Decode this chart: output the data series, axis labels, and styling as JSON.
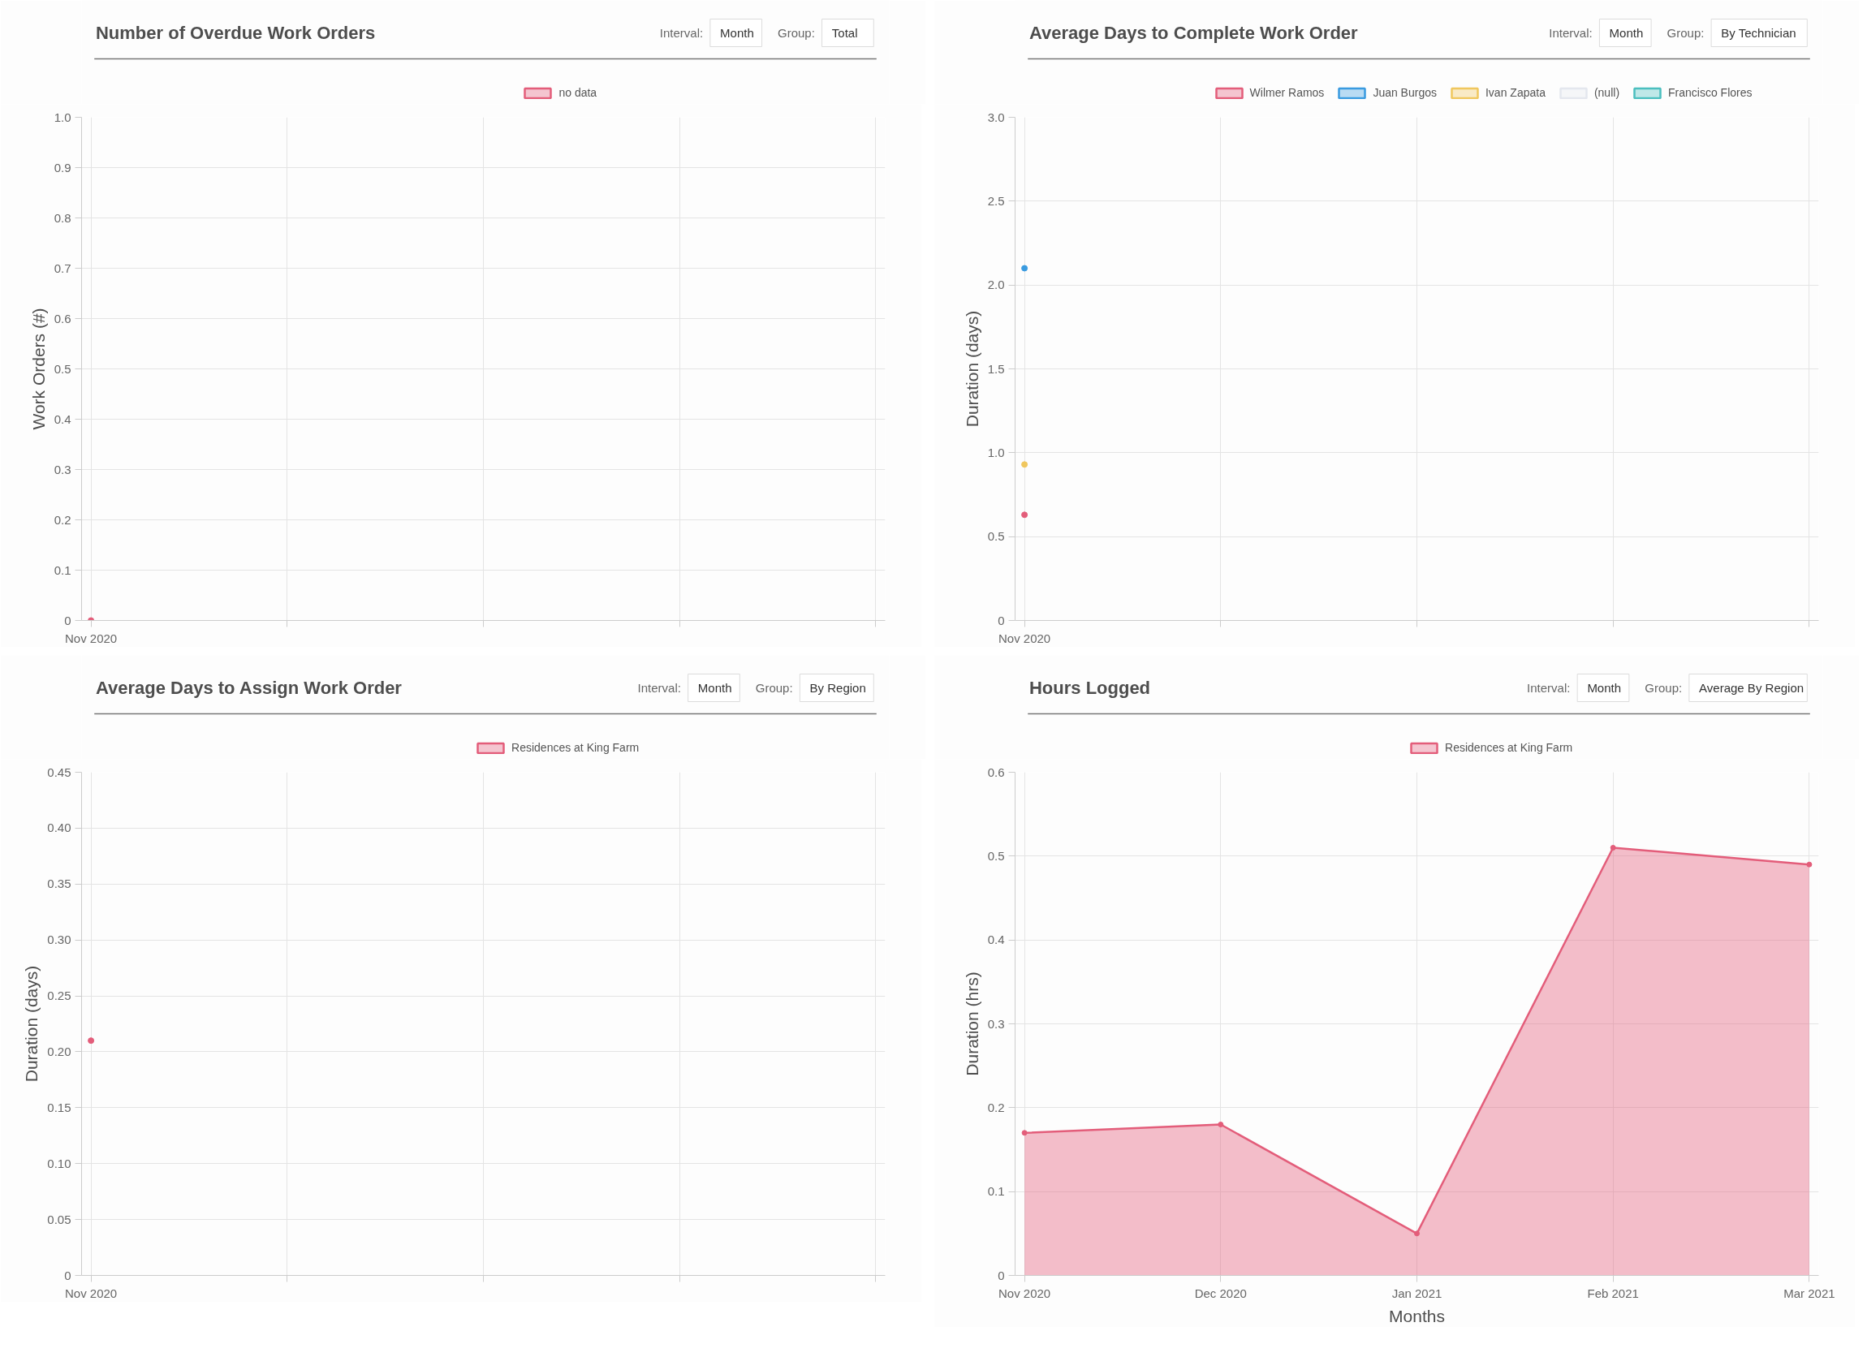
{
  "chart_data": [
    {
      "type": "area",
      "title": "Number of Overdue Work Orders",
      "annotations": [
        "Interval:",
        "Month",
        "Group:",
        "Total"
      ],
      "ylabel": "Work Orders (#)",
      "categories": [
        "Nov 2020",
        null,
        null,
        null,
        null
      ],
      "series": [
        {
          "name": "no data",
          "type": "scatter",
          "color": "#e35d7a",
          "values": [
            0,
            null,
            null,
            null,
            null
          ]
        }
      ],
      "ylim": [
        0,
        1
      ],
      "yticks": [
        0,
        0.1,
        0.2,
        0.3,
        0.4,
        0.5,
        0.6,
        0.7,
        0.8,
        0.9,
        {
          "value": 1,
          "label": "1.0"
        }
      ],
      "grid": true,
      "legend": "top",
      "marker": "circle"
    },
    {
      "type": "area",
      "title": "Average Days to Complete Work Order",
      "annotations": [
        "Interval:",
        "Month",
        "Group:",
        "By Technician"
      ],
      "ylabel": "Duration (days)",
      "categories": [
        "Nov 2020",
        null,
        null,
        null,
        null
      ],
      "series": [
        {
          "name": "Wilmer Ramos",
          "type": "scatter",
          "color": "#e35d7a",
          "values": [
            0.63,
            null,
            null,
            null,
            null
          ]
        },
        {
          "name": "Juan Burgos",
          "type": "scatter",
          "color": "#3a9be0",
          "values": [
            2.1,
            null,
            null,
            null,
            null
          ]
        },
        {
          "name": "Ivan Zapata",
          "type": "scatter",
          "color": "#f0c75e",
          "values": [
            0.93,
            null,
            null,
            null,
            null
          ]
        },
        {
          "name": "(null)",
          "color": "#e4e7ee",
          "values": [
            null,
            null,
            null,
            null,
            null
          ]
        },
        {
          "name": "Francisco Flores",
          "color": "#4bbfbf",
          "values": [
            null,
            null,
            null,
            null,
            null
          ]
        }
      ],
      "ylim": [
        0,
        3
      ],
      "yticks": [
        0,
        0.5,
        {
          "value": 1,
          "label": "1.0"
        },
        1.5,
        {
          "value": 2,
          "label": "2.0"
        },
        2.5,
        {
          "value": 3,
          "label": "3.0"
        }
      ],
      "grid": true,
      "legend": "top",
      "marker": "circle"
    },
    {
      "type": "area",
      "title": "Average Days to Assign Work Order",
      "annotations": [
        "Interval:",
        "Month",
        "Group:",
        "By Region"
      ],
      "ylabel": "Duration (days)",
      "categories": [
        "Nov 2020",
        null,
        null,
        null,
        null
      ],
      "series": [
        {
          "name": "Residences at King Farm",
          "type": "scatter",
          "color": "#e35d7a",
          "values": [
            0.21,
            null,
            null,
            null,
            null
          ]
        }
      ],
      "ylim": [
        0,
        0.45
      ],
      "yticks": [
        0,
        0.05,
        {
          "value": 0.1,
          "label": "0.10"
        },
        0.15,
        {
          "value": 0.2,
          "label": "0.20"
        },
        0.25,
        {
          "value": 0.3,
          "label": "0.30"
        },
        0.35,
        {
          "value": 0.4,
          "label": "0.40"
        },
        0.45
      ],
      "grid": true,
      "legend": "top",
      "marker": "circle"
    },
    {
      "type": "area",
      "title": "Hours Logged",
      "annotations": [
        "Interval:",
        "Month",
        "Group:",
        "Average By Region"
      ],
      "ylabel": "Duration (hrs)",
      "xlabel": "Months",
      "categories": [
        "Nov 2020",
        "Dec 2020",
        "Jan 2021",
        "Feb 2021",
        "Mar 2021"
      ],
      "series": [
        {
          "name": "Residences at King Farm",
          "color": "#e35d7a",
          "values": [
            0.17,
            0.18,
            0.05,
            0.51,
            0.49
          ]
        }
      ],
      "ylim": [
        0,
        0.6
      ],
      "yticks": [
        0,
        0.1,
        0.2,
        0.3,
        0.4,
        0.5,
        0.6
      ],
      "grid": true,
      "legend": "top",
      "marker": "circle"
    }
  ]
}
